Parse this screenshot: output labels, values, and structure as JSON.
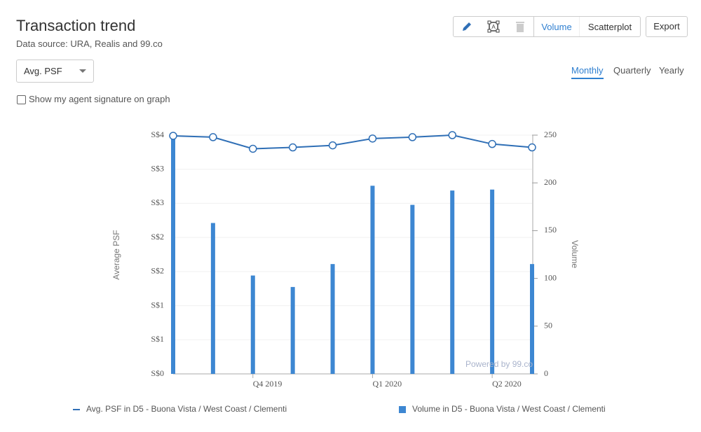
{
  "header": {
    "title": "Transaction trend",
    "source": "Data source: URA, Realis and 99.co"
  },
  "toolbar": {
    "buttons": [
      "Volume",
      "Scatterplot"
    ],
    "export": "Export"
  },
  "controls": {
    "dropdown": "Avg. PSF",
    "checkbox": "Show my agent signature on graph",
    "tabs": [
      "Monthly",
      "Quarterly",
      "Yearly"
    ]
  },
  "chart_data": {
    "type": "combo",
    "categories": [
      null,
      null,
      "Q4 2019",
      null,
      null,
      "Q1 2020",
      null,
      null,
      "Q2 2020",
      null
    ],
    "series": [
      {
        "name": "Avg. PSF in D5 - Buona Vista / West Coast / Clementi",
        "type": "line",
        "color": "#2f6fb6",
        "values": [
          3.49,
          3.47,
          3.3,
          3.32,
          3.35,
          3.45,
          3.47,
          3.5,
          3.37,
          3.32
        ]
      },
      {
        "name": "Volume in D5 - Buona Vista / West Coast / Clementi",
        "type": "bar",
        "axis": "y2",
        "color": "#3d87d2",
        "values": [
          247,
          158,
          103,
          91,
          115,
          197,
          177,
          192,
          193,
          115
        ]
      }
    ],
    "y_label": "Average PSF",
    "y2_label": "Volume",
    "ylim": [
      0,
      3.5
    ],
    "yticks": [
      {
        "value": 0,
        "label": "S$0"
      },
      {
        "value": 0.5,
        "label": "S$1"
      },
      {
        "value": 1,
        "label": "S$1"
      },
      {
        "value": 1.5,
        "label": "S$2"
      },
      {
        "value": 2,
        "label": "S$2"
      },
      {
        "value": 2.5,
        "label": "S$3"
      },
      {
        "value": 3,
        "label": "S$3"
      },
      {
        "value": 3.5,
        "label": "S$4"
      }
    ],
    "y2lim": [
      0,
      250
    ],
    "y2ticks": [
      0,
      50,
      100,
      150,
      200,
      250
    ],
    "grid": true,
    "watermark": "Powered by 99.co"
  }
}
